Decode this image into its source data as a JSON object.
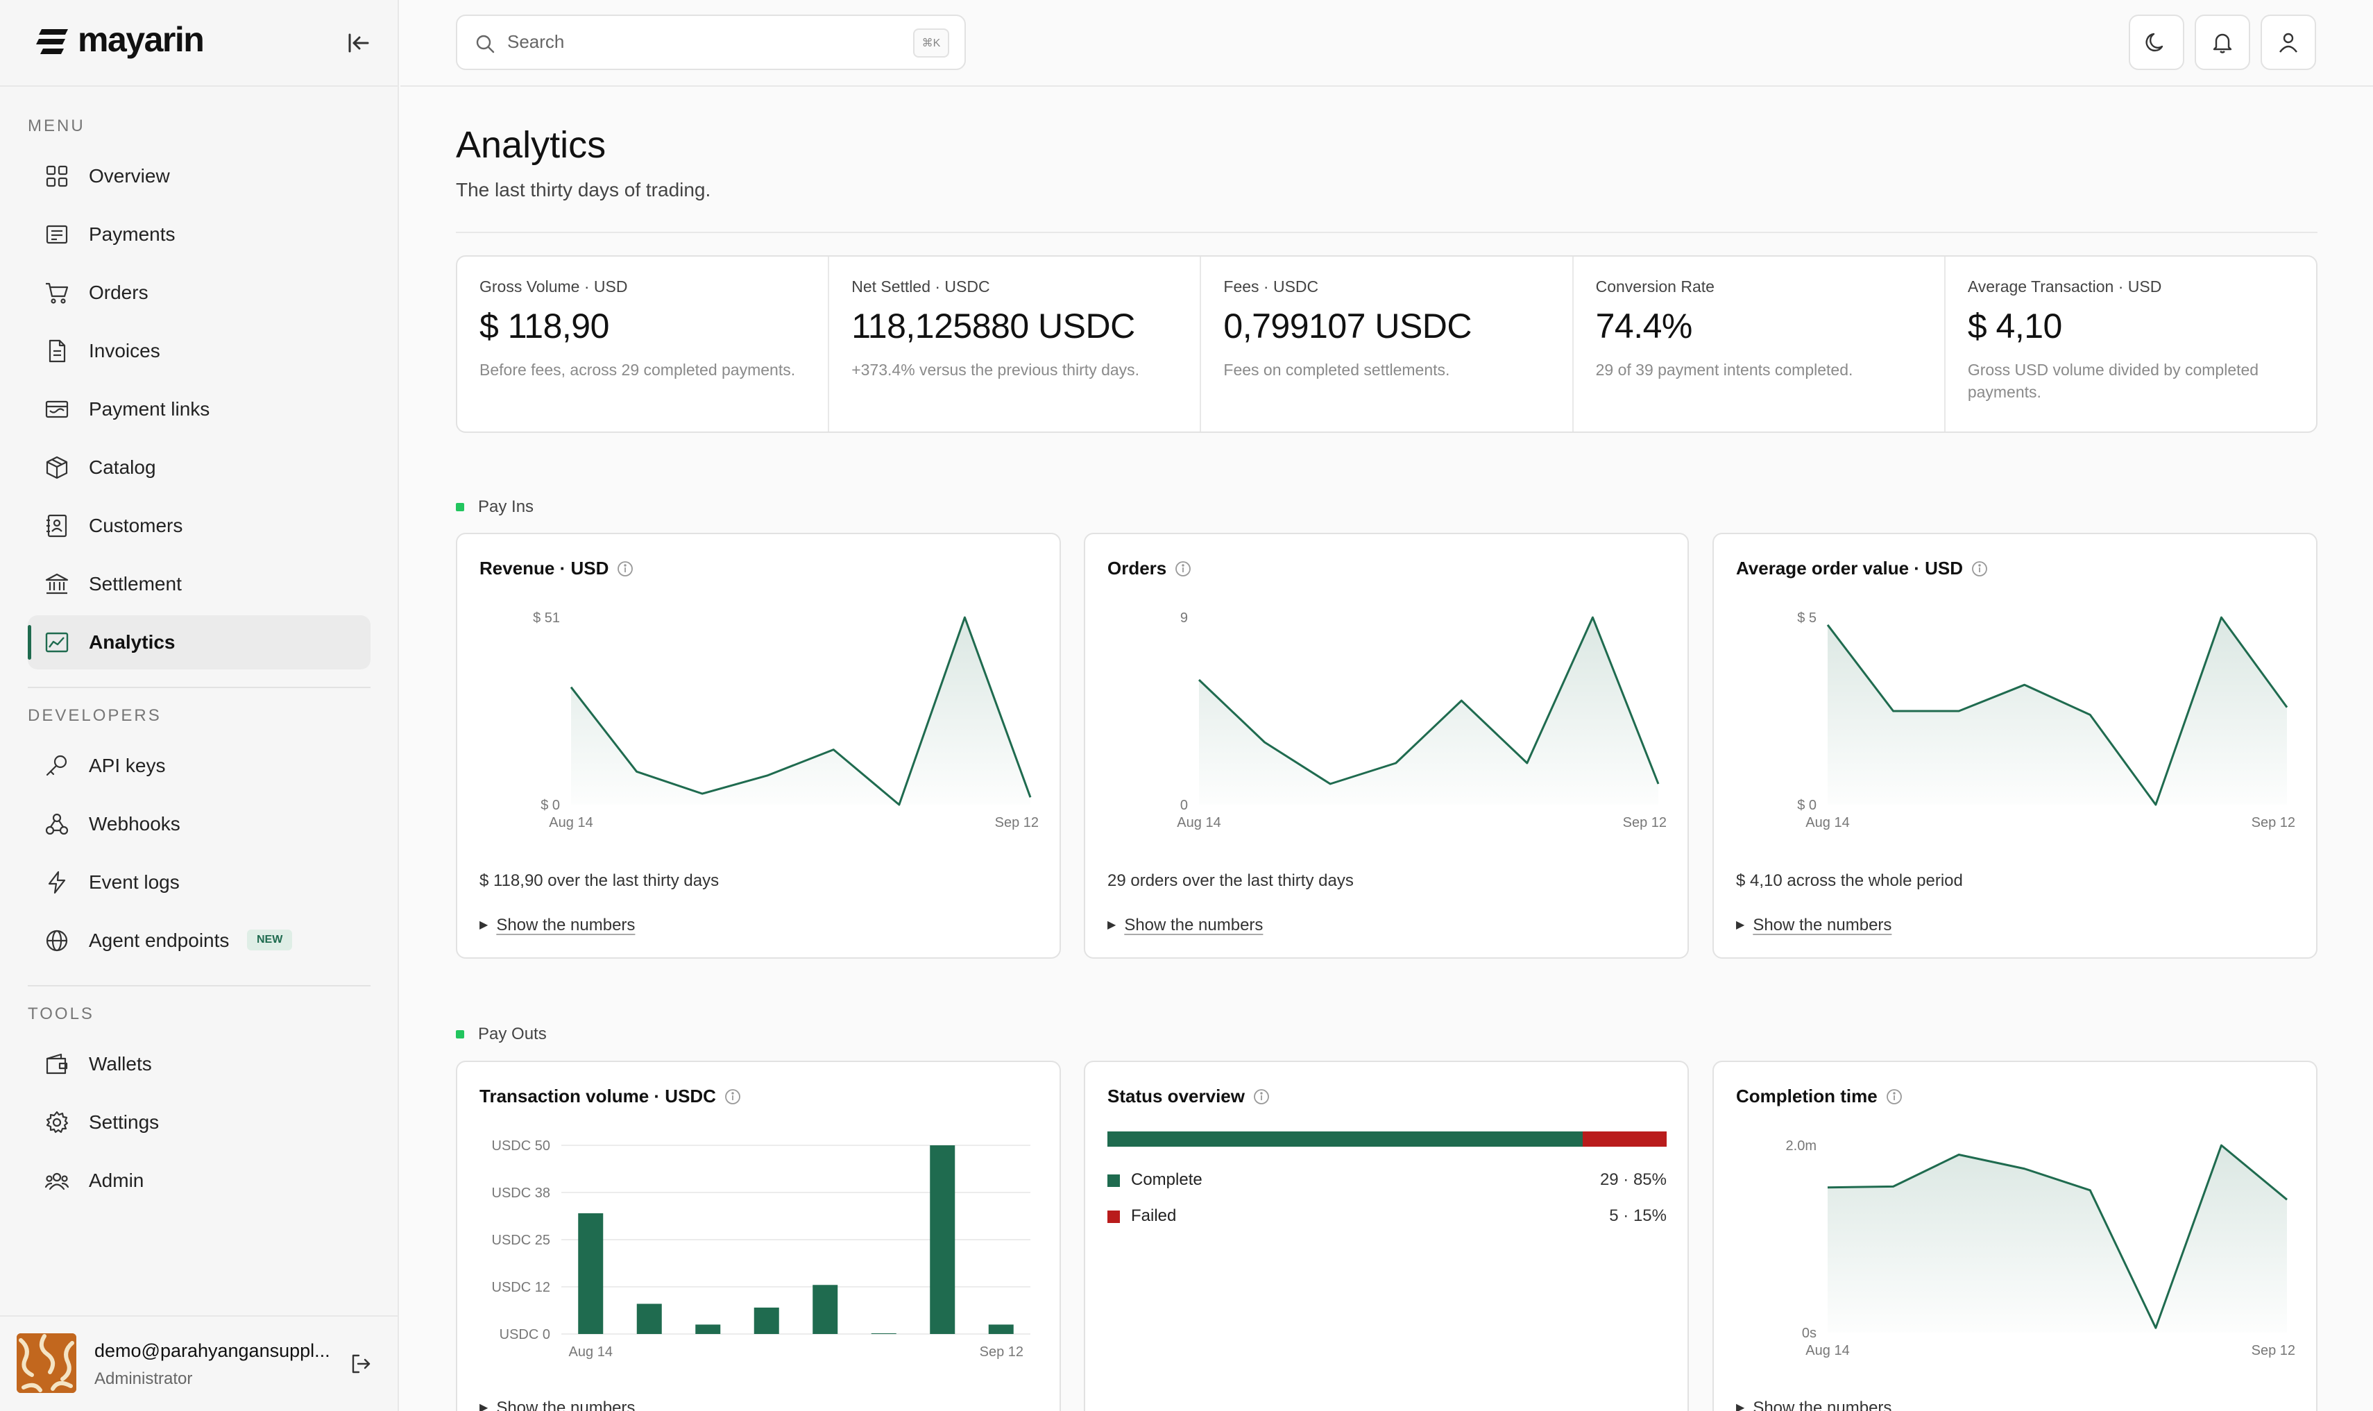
{
  "brand": {
    "name": "mayarin"
  },
  "sidebar": {
    "menu_label": "MENU",
    "menu_items": [
      {
        "label": "Overview",
        "icon": "grid-icon"
      },
      {
        "label": "Payments",
        "icon": "receipt-icon"
      },
      {
        "label": "Orders",
        "icon": "cart-icon"
      },
      {
        "label": "Invoices",
        "icon": "document-icon"
      },
      {
        "label": "Payment links",
        "icon": "card-icon"
      },
      {
        "label": "Catalog",
        "icon": "box-icon"
      },
      {
        "label": "Customers",
        "icon": "contacts-icon"
      },
      {
        "label": "Settlement",
        "icon": "bank-icon"
      },
      {
        "label": "Analytics",
        "icon": "chart-icon",
        "active": true
      }
    ],
    "developers_label": "DEVELOPERS",
    "developer_items": [
      {
        "label": "API keys",
        "icon": "key-icon"
      },
      {
        "label": "Webhooks",
        "icon": "webhook-icon"
      },
      {
        "label": "Event logs",
        "icon": "bolt-icon"
      },
      {
        "label": "Agent endpoints",
        "icon": "globe-icon",
        "badge": "NEW"
      }
    ],
    "tools_label": "TOOLS",
    "tool_items": [
      {
        "label": "Wallets",
        "icon": "wallet-icon"
      },
      {
        "label": "Settings",
        "icon": "gear-icon"
      },
      {
        "label": "Admin",
        "icon": "users-icon"
      }
    ],
    "user": {
      "email": "demo@parahyangansuppl...",
      "role": "Administrator"
    }
  },
  "topbar": {
    "search_placeholder": "Search",
    "shortcut": "⌘K"
  },
  "page": {
    "title": "Analytics",
    "subtitle": "The last thirty days of trading."
  },
  "stats": [
    {
      "label": "Gross Volume · USD",
      "value": "$ 118,90",
      "note": "Before fees, across 29 completed payments."
    },
    {
      "label": "Net Settled · USDC",
      "value": "118,125880 USDC",
      "note": "+373.4% versus the previous thirty days."
    },
    {
      "label": "Fees · USDC",
      "value": "0,799107 USDC",
      "note": "Fees on completed settlements."
    },
    {
      "label": "Conversion Rate",
      "value": "74.4%",
      "note": "29 of 39 payment intents completed."
    },
    {
      "label": "Average Transaction · USD",
      "value": "$ 4,10",
      "note": "Gross USD volume divided by completed payments."
    }
  ],
  "pay_ins": {
    "label": "Pay Ins",
    "cards": [
      {
        "title": "Revenue · USD",
        "summary": "$ 118,90 over the last thirty days",
        "show": "Show the numbers"
      },
      {
        "title": "Orders",
        "summary": "29 orders over the last thirty days",
        "show": "Show the numbers"
      },
      {
        "title": "Average order value · USD",
        "summary": "$ 4,10 across the whole period",
        "show": "Show the numbers"
      }
    ]
  },
  "pay_outs": {
    "label": "Pay Outs",
    "cards": [
      {
        "title": "Transaction volume · USDC",
        "show": "Show the numbers"
      },
      {
        "title": "Status overview"
      },
      {
        "title": "Completion time",
        "show": "Show the numbers"
      }
    ],
    "status": [
      {
        "name": "Complete",
        "value": "29 · 85%",
        "share": 0.85,
        "color": "#1f6b4f"
      },
      {
        "name": "Failed",
        "value": "5 · 15%",
        "share": 0.15,
        "color": "#b91c1c"
      }
    ]
  },
  "colors": {
    "accent": "#1f6b4f",
    "failed": "#b91c1c",
    "live_dot": "#22c55e"
  },
  "chart_data": [
    {
      "type": "area",
      "title": "Revenue · USD",
      "x_labels": [
        "Aug 14",
        "Sep 12"
      ],
      "y_ticks": [
        "$ 51",
        "$ 0"
      ],
      "ylim": [
        0,
        51
      ],
      "values": [
        32,
        9,
        3,
        8,
        15,
        0,
        51,
        2
      ]
    },
    {
      "type": "area",
      "title": "Orders",
      "x_labels": [
        "Aug 14",
        "Sep 12"
      ],
      "y_ticks": [
        "9",
        "0"
      ],
      "ylim": [
        0,
        9
      ],
      "values": [
        6,
        3,
        1,
        2,
        5,
        2,
        9,
        1
      ]
    },
    {
      "type": "area",
      "title": "Average order value · USD",
      "x_labels": [
        "Aug 14",
        "Sep 12"
      ],
      "y_ticks": [
        "$ 5",
        "$ 0"
      ],
      "ylim": [
        0,
        5
      ],
      "values": [
        4.8,
        2.5,
        2.5,
        3.2,
        2.4,
        0,
        5,
        2.6
      ]
    },
    {
      "type": "bar",
      "title": "Transaction volume · USDC",
      "x_labels": [
        "Aug 14",
        "Sep 12"
      ],
      "y_ticks": [
        "USDC 50",
        "USDC 38",
        "USDC 25",
        "USDC 12",
        "USDC 0"
      ],
      "ylim": [
        0,
        50
      ],
      "values": [
        32,
        8,
        2.5,
        7,
        13,
        0,
        50,
        2.5
      ]
    },
    {
      "type": "area",
      "title": "Completion time",
      "x_labels": [
        "Aug 14",
        "Sep 12"
      ],
      "y_ticks": [
        "2.0m",
        "0s"
      ],
      "ylim": [
        0,
        2.0
      ],
      "values": [
        1.55,
        1.56,
        1.9,
        1.75,
        1.52,
        0.05,
        2.0,
        1.42
      ]
    }
  ]
}
